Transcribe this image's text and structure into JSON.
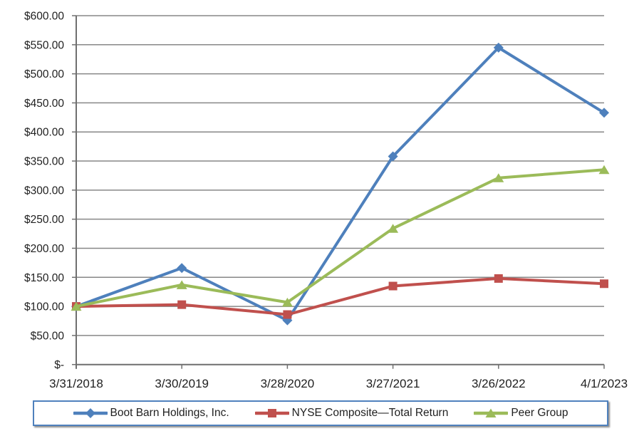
{
  "chart_data": {
    "type": "line",
    "title": "",
    "xlabel": "",
    "ylabel": "",
    "categories": [
      "3/31/2018",
      "3/30/2019",
      "3/28/2020",
      "3/27/2021",
      "3/26/2022",
      "4/1/2023"
    ],
    "series": [
      {
        "name": "Boot Barn Holdings, Inc.",
        "color": "#4e80bc",
        "marker": "diamond",
        "values": [
          100,
          166,
          76,
          358,
          545,
          433
        ]
      },
      {
        "name": "NYSE Composite—Total Return",
        "color": "#c0504d",
        "marker": "square",
        "values": [
          100,
          103,
          86,
          135,
          148,
          139
        ]
      },
      {
        "name": "Peer Group",
        "color": "#9bbb59",
        "marker": "triangle",
        "values": [
          100,
          137,
          107,
          234,
          321,
          335
        ]
      }
    ],
    "ylim": [
      0,
      600
    ],
    "ytick_step": 50,
    "ytick_labels": [
      "$600.00",
      "$550.00",
      "$500.00",
      "$450.00",
      "$400.00",
      "$350.00",
      "$300.00",
      "$250.00",
      "$200.00",
      "$150.00",
      "$100.00",
      "$50.00",
      "$-"
    ],
    "grid": true,
    "legend_position": "bottom",
    "colors": {
      "grid_line": "#878787",
      "axis_line": "#6f6f6f",
      "tick_text": "#212121",
      "legend_border": "#4f81bd",
      "background": "#ffffff"
    }
  }
}
